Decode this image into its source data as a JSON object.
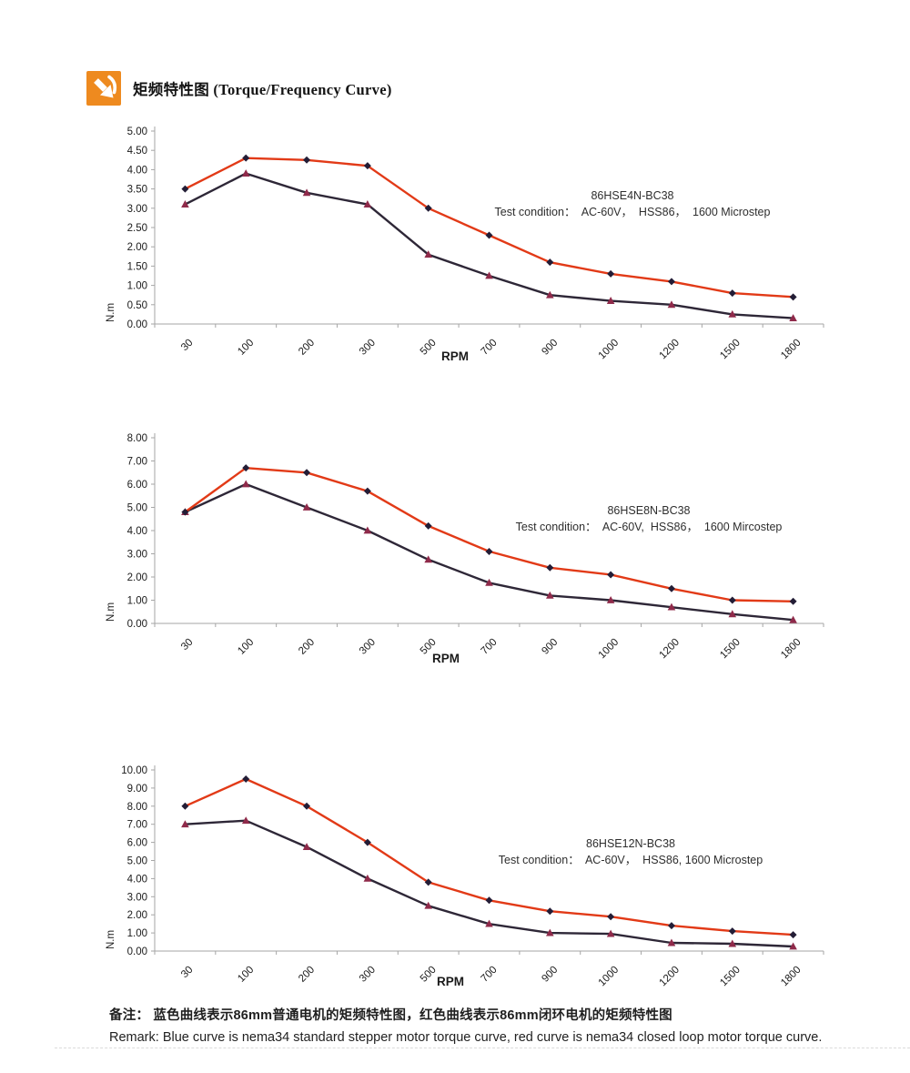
{
  "page": {
    "header": {
      "title": "矩频特性图 (Torque/Frequency Curve)"
    },
    "footer": {
      "remark_cn": "备注：  蓝色曲线表示86mm普通电机的矩频特性图，红色曲线表示86mm闭环电机的矩频特性图",
      "remark_en": "Remark: Blue curve is nema34 standard stepper motor torque curve, red curve is nema34 closed loop motor torque curve."
    },
    "colors": {
      "accent_orange": "#ee8a1f",
      "red_line": "#e23a17",
      "red_marker": "#231d36",
      "blue_line": "#2e2737",
      "blue_marker": "#8f2a4a",
      "axis": "#a6a6a6",
      "text": "#1a1a1a"
    }
  },
  "chart_data": [
    {
      "type": "line",
      "title": "86HSE4N-BC38",
      "test_condition": "Test condition：  AC-60V，  HSS86，  1600 Microstep",
      "xlabel": "RPM",
      "ylabel": "N.m",
      "categories": [
        "30",
        "100",
        "200",
        "300",
        "500",
        "700",
        "900",
        "1000",
        "1200",
        "1500",
        "1800"
      ],
      "y_ticks": [
        "0.00",
        "0.50",
        "1.00",
        "1.50",
        "2.00",
        "2.50",
        "3.00",
        "3.50",
        "4.00",
        "4.50",
        "5.00"
      ],
      "ylim": [
        0,
        5
      ],
      "grid": false,
      "legend": "none",
      "series": [
        {
          "name": "nema34 standard stepper motor (blue curve)",
          "color": "#2e2737",
          "marker": "triangle",
          "marker_color": "#8f2a4a",
          "values": [
            3.1,
            3.9,
            3.4,
            3.1,
            1.8,
            1.25,
            0.75,
            0.6,
            0.5,
            0.25,
            0.15
          ]
        },
        {
          "name": "nema34 closed loop motor (red curve)",
          "color": "#e23a17",
          "marker": "diamond",
          "marker_color": "#231d36",
          "values": [
            3.5,
            4.3,
            4.25,
            4.1,
            3.0,
            2.3,
            1.6,
            1.3,
            1.1,
            0.8,
            0.7
          ]
        }
      ]
    },
    {
      "type": "line",
      "title": "86HSE8N-BC38",
      "test_condition": "Test condition：  AC-60V,  HSS86，  1600 Mircostep",
      "xlabel": "RPM",
      "ylabel": "N.m",
      "categories": [
        "30",
        "100",
        "200",
        "300",
        "500",
        "700",
        "900",
        "1000",
        "1200",
        "1500",
        "1800"
      ],
      "y_ticks": [
        "0.00",
        "1.00",
        "2.00",
        "3.00",
        "4.00",
        "5.00",
        "6.00",
        "7.00",
        "8.00"
      ],
      "ylim": [
        0,
        8
      ],
      "grid": false,
      "legend": "none",
      "series": [
        {
          "name": "nema34 standard stepper motor (blue curve)",
          "color": "#2e2737",
          "marker": "triangle",
          "marker_color": "#8f2a4a",
          "values": [
            4.8,
            6.0,
            5.0,
            4.0,
            2.75,
            1.75,
            1.2,
            1.0,
            0.7,
            0.4,
            0.15
          ]
        },
        {
          "name": "nema34 closed loop motor (red curve)",
          "color": "#e23a17",
          "marker": "diamond",
          "marker_color": "#231d36",
          "values": [
            4.8,
            6.7,
            6.5,
            5.7,
            4.2,
            3.1,
            2.4,
            2.1,
            1.5,
            1.0,
            0.95
          ]
        }
      ]
    },
    {
      "type": "line",
      "title": "86HSE12N-BC38",
      "test_condition": "Test condition：  AC-60V，  HSS86, 1600 Microstep",
      "xlabel": "RPM",
      "ylabel": "N.m",
      "categories": [
        "30",
        "100",
        "200",
        "300",
        "500",
        "700",
        "900",
        "1000",
        "1200",
        "1500",
        "1800"
      ],
      "y_ticks": [
        "0.00",
        "1.00",
        "2.00",
        "3.00",
        "4.00",
        "5.00",
        "6.00",
        "7.00",
        "8.00",
        "9.00",
        "10.00"
      ],
      "ylim": [
        0,
        10
      ],
      "grid": false,
      "legend": "none",
      "series": [
        {
          "name": "nema34 standard stepper motor (blue curve)",
          "color": "#2e2737",
          "marker": "triangle",
          "marker_color": "#8f2a4a",
          "values": [
            7.0,
            7.2,
            5.75,
            4.0,
            2.5,
            1.5,
            1.0,
            0.95,
            0.45,
            0.4,
            0.25
          ]
        },
        {
          "name": "nema34 closed loop motor (red curve)",
          "color": "#e23a17",
          "marker": "diamond",
          "marker_color": "#231d36",
          "values": [
            8.0,
            9.5,
            8.0,
            6.0,
            3.8,
            2.8,
            2.2,
            1.9,
            1.4,
            1.1,
            0.9
          ]
        }
      ]
    }
  ]
}
